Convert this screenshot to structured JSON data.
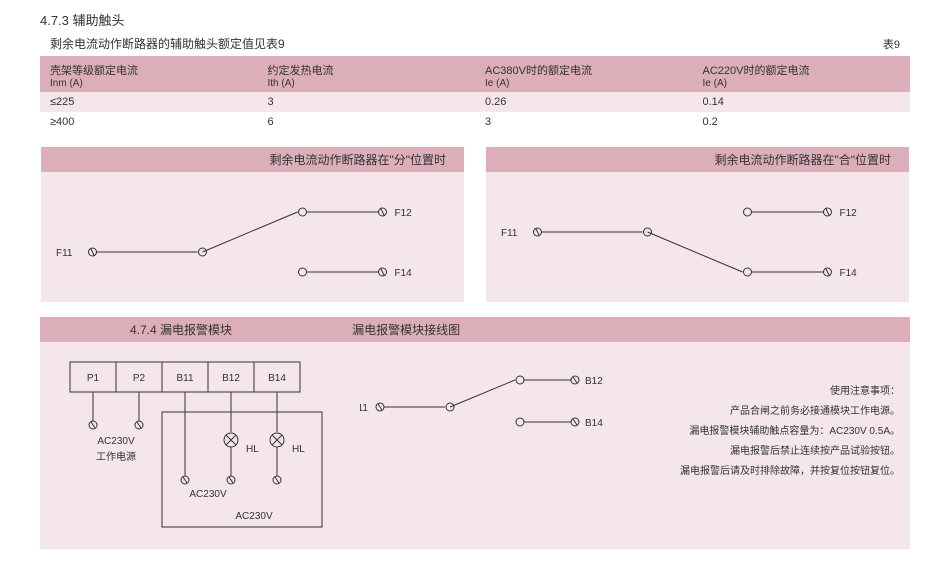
{
  "section": {
    "number": "4.7.3",
    "title": "辅助触头",
    "caption": "剩余电流动作断路器的辅助触头额定值见表9",
    "table_label": "表9"
  },
  "table": {
    "headers": [
      {
        "top": "壳架等级额定电流",
        "sub": "Inm  (A)"
      },
      {
        "top": "约定发热电流",
        "sub": "Ith  (A)"
      },
      {
        "top": "AC380V时的额定电流",
        "sub": "Ie  (A)"
      },
      {
        "top": "AC220V时的额定电流",
        "sub": "Ie  (A)"
      }
    ],
    "rows": [
      [
        "≤225",
        "3",
        "0.26",
        "0.14"
      ],
      [
        "≥400",
        "6",
        "3",
        "0.2"
      ]
    ],
    "col_widths": [
      "25%",
      "25%",
      "25%",
      "25%"
    ]
  },
  "diagrams": {
    "open": {
      "title": "剩余电流动作断路器在\"分\"位置时",
      "bg": "#f4e6ea",
      "stroke": "#333333",
      "labels": {
        "common": "F11",
        "no": "F12",
        "nc": "F14"
      }
    },
    "close": {
      "title": "剩余电流动作断路器在\"合\"位置时",
      "bg": "#f4e6ea",
      "stroke": "#333333",
      "labels": {
        "common": "F11",
        "no": "F12",
        "nc": "F14"
      }
    }
  },
  "alarm": {
    "section_number": "4.7.4",
    "section_title": "漏电报警模块",
    "wiring_title": "漏电报警模块接线图",
    "terminals": [
      "P1",
      "P2",
      "B11",
      "B12",
      "B14"
    ],
    "power_label": "AC230V",
    "power_sub": "工作电源",
    "hl_label": "HL",
    "ac_label": "AC230V",
    "contact": {
      "common": "B11",
      "no": "B12",
      "nc": "B14"
    },
    "notes": [
      "使用注意事项：",
      "产品合闸之前务必接通模块工作电源。",
      "漏电报警模块辅助触点容量为：AC230V 0.5A。",
      "漏电报警后禁止连续按产品试验按钮。",
      "漏电报警后请及时排除故障，并按复位按钮复位。"
    ]
  },
  "colors": {
    "header_bg": "#dcaeb9",
    "body_bg": "#f4e6ea",
    "stroke": "#333333"
  }
}
